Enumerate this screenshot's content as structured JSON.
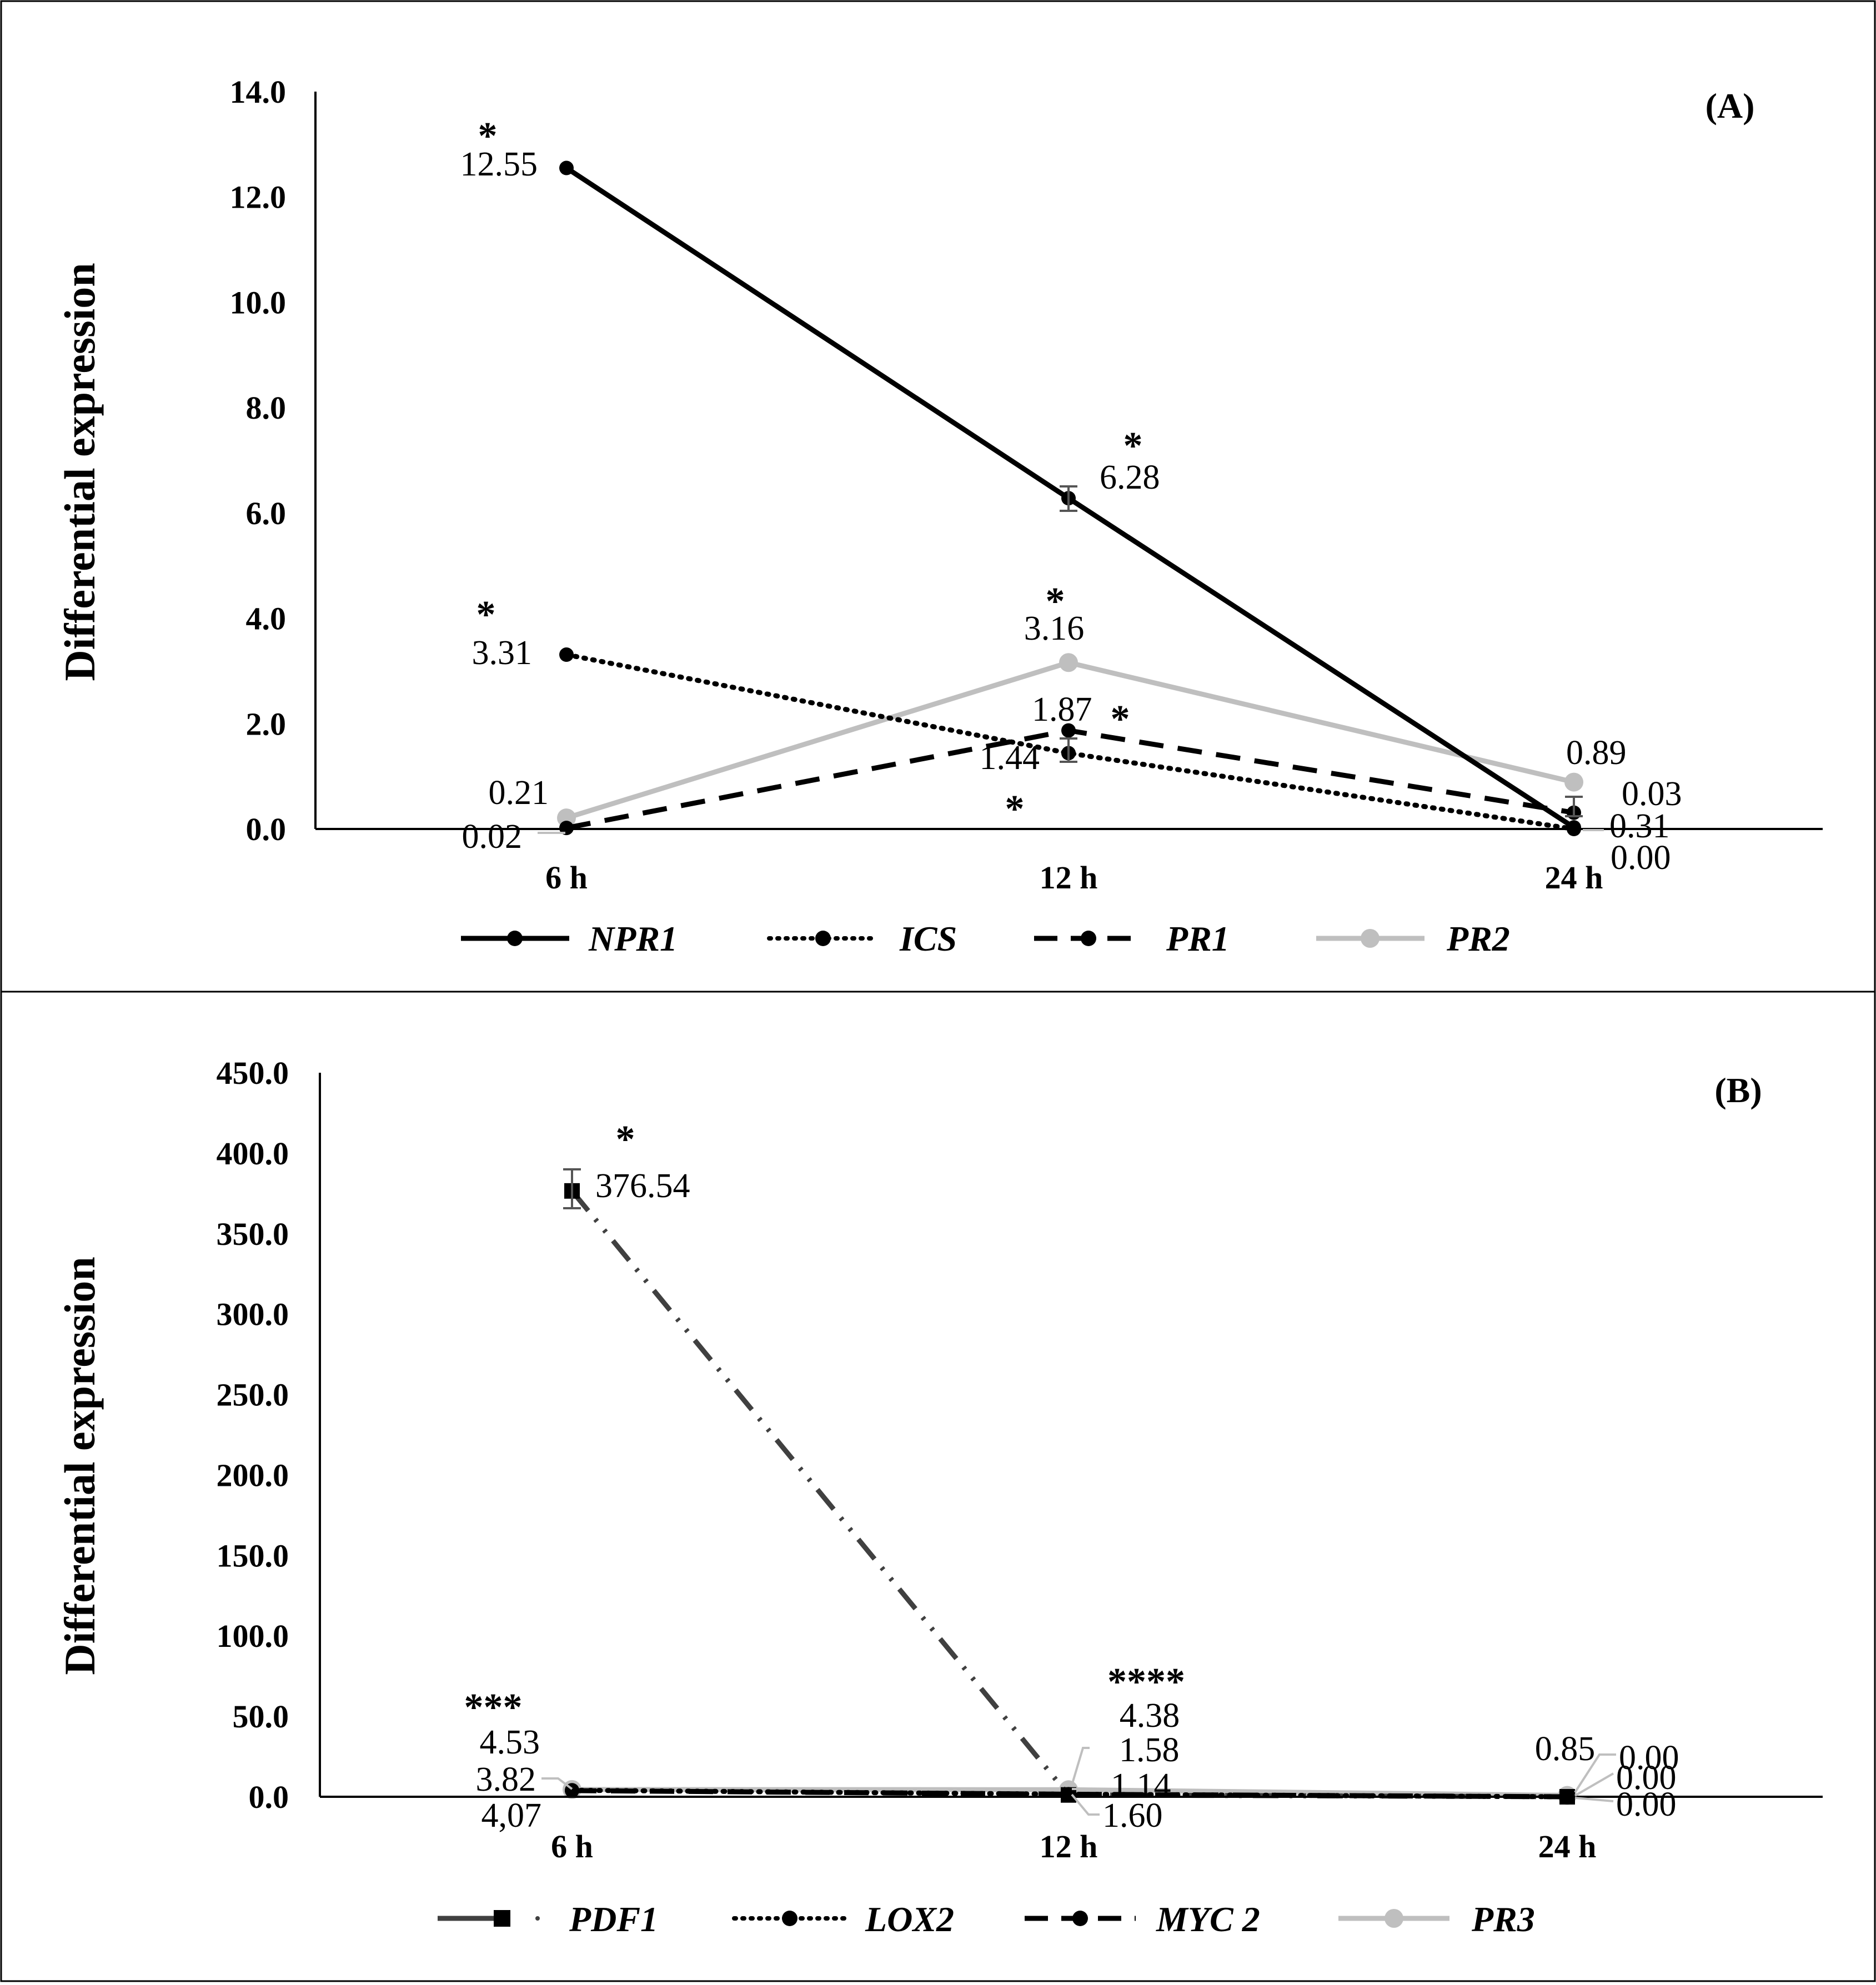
{
  "chart_data": [
    {
      "type": "line",
      "panel_label": "(A)",
      "panel_label_inner": "A",
      "ylabel": "Differential expression",
      "xlabel": "",
      "categories": [
        "6 h",
        "12 h",
        "24 h"
      ],
      "ylim": [
        0,
        14
      ],
      "yticks": [
        "0.0",
        "2.0",
        "4.0",
        "6.0",
        "8.0",
        "10.0",
        "12.0",
        "14.0"
      ],
      "series": [
        {
          "name": "NPR1",
          "values": [
            12.55,
            6.28,
            0.03
          ],
          "color": "#000000",
          "style": "solid",
          "marker": "circle",
          "labels": [
            "12.55",
            "6.28",
            "0.03"
          ]
        },
        {
          "name": "ICS",
          "values": [
            3.31,
            1.44,
            0.0
          ],
          "color": "#000000",
          "style": "dotted",
          "marker": "circle",
          "labels": [
            "3.31",
            "1.44",
            "0.00"
          ]
        },
        {
          "name": "PR1",
          "values": [
            0.02,
            1.87,
            0.31
          ],
          "color": "#000000",
          "style": "dashed",
          "marker": "circle",
          "labels": [
            "0.02",
            "1.87",
            "0.31"
          ]
        },
        {
          "name": "PR2",
          "values": [
            0.21,
            3.16,
            0.89
          ],
          "color": "#bfbfbf",
          "style": "solid",
          "marker": "circle",
          "labels": [
            "0.21",
            "3.16",
            "0.89"
          ]
        }
      ],
      "significance": [
        "*",
        "*",
        "*",
        "*",
        "*",
        "*"
      ],
      "legend": "bottom"
    },
    {
      "type": "line",
      "panel_label": "(B)",
      "panel_label_inner": "B",
      "ylabel": "Differential expression",
      "xlabel": "",
      "categories": [
        "6 h",
        "12 h",
        "24 h"
      ],
      "ylim": [
        0,
        450
      ],
      "yticks": [
        "0.0",
        "50.0",
        "100.0",
        "150.0",
        "200.0",
        "250.0",
        "300.0",
        "350.0",
        "400.0",
        "450.0"
      ],
      "series": [
        {
          "name": "PDF1",
          "values": [
            376.54,
            1.14,
            0.0
          ],
          "color": "#404040",
          "style": "dash-dot-dot",
          "marker": "square",
          "labels": [
            "376.54",
            "1.14",
            "0.00"
          ]
        },
        {
          "name": "LOX2",
          "values": [
            4.07,
            1.6,
            0.0
          ],
          "color": "#000000",
          "style": "dotted",
          "marker": "circle",
          "labels": [
            "4,07",
            "1.60",
            "0.00"
          ]
        },
        {
          "name": "MYC 2",
          "values": [
            3.82,
            1.58,
            0.0
          ],
          "color": "#000000",
          "style": "dashed",
          "marker": "circle",
          "labels": [
            "3.82",
            "1.58",
            "0.00"
          ]
        },
        {
          "name": "PR3",
          "values": [
            4.53,
            4.38,
            0.85
          ],
          "color": "#bfbfbf",
          "style": "solid",
          "marker": "circle",
          "labels": [
            "4.53",
            "4.38",
            "0.85"
          ]
        }
      ],
      "significance": [
        "*",
        "***",
        "****"
      ],
      "legend": "bottom"
    }
  ]
}
